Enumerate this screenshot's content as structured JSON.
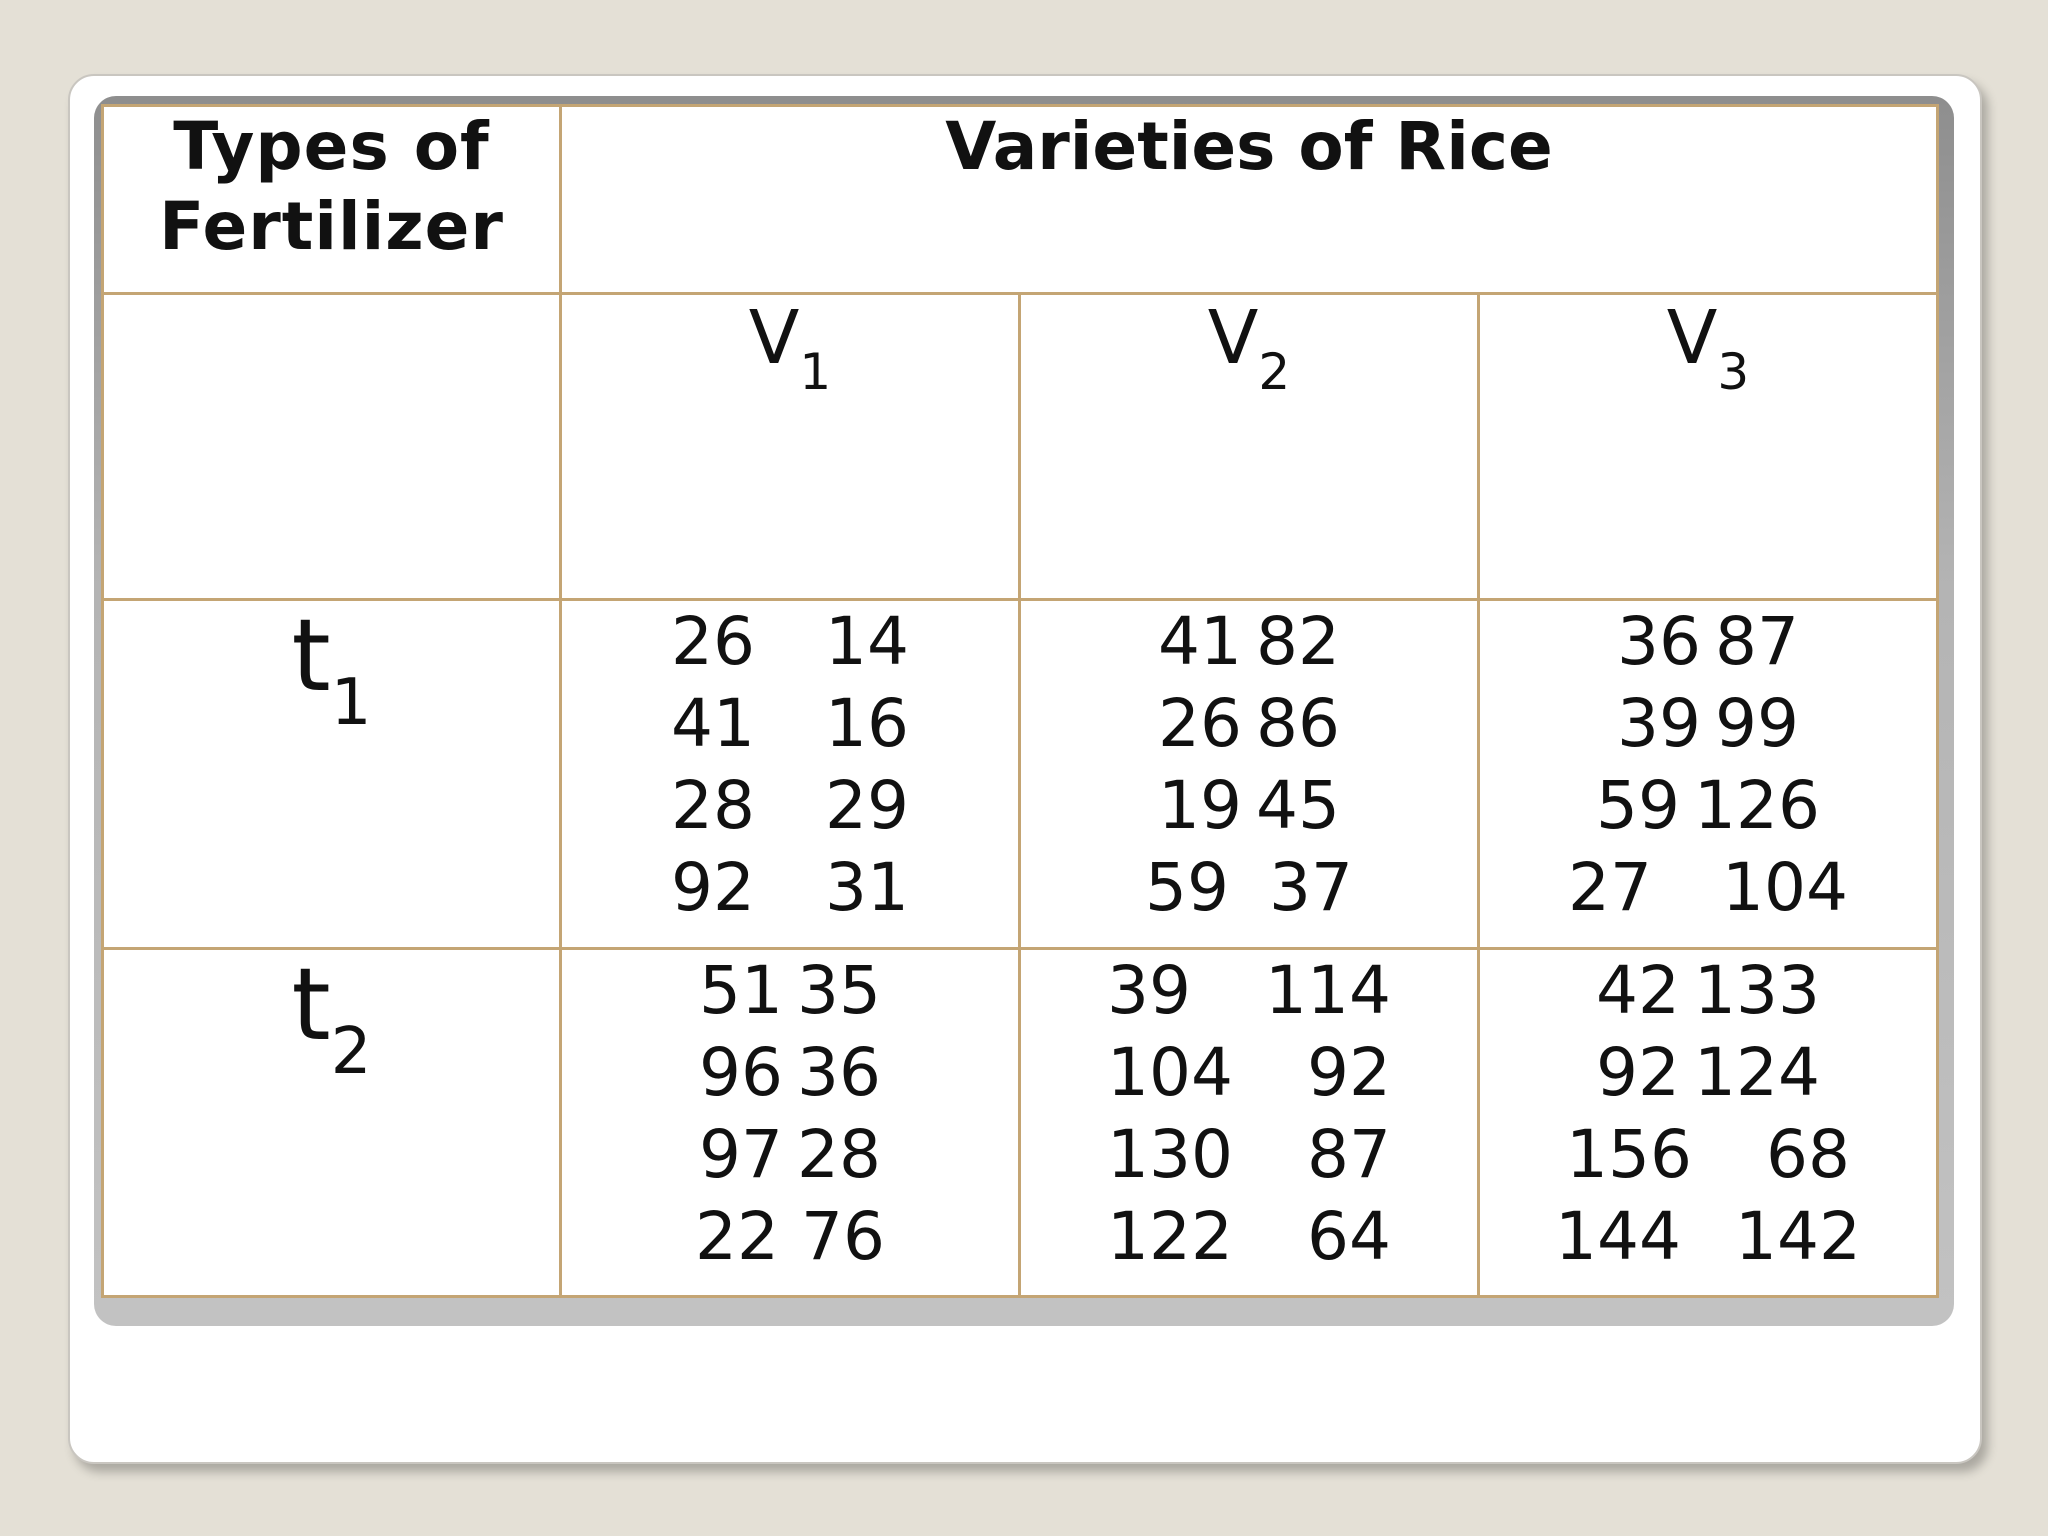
{
  "header": {
    "types_line1": "Types of",
    "types_line2": "Fertilizer",
    "varieties": "Varieties of Rice"
  },
  "varieties": [
    {
      "letter": "V",
      "sub": "1"
    },
    {
      "letter": "V",
      "sub": "2"
    },
    {
      "letter": "V",
      "sub": "3"
    }
  ],
  "rows": [
    {
      "letter": "t",
      "sub": "1",
      "cells": [
        [
          [
            "26",
            "14"
          ],
          [
            "41",
            "16"
          ],
          [
            "28",
            "29"
          ],
          [
            "92",
            "31"
          ]
        ],
        [
          [
            "41",
            "82"
          ],
          [
            "26",
            "86"
          ],
          [
            "19",
            "45"
          ],
          [
            "59",
            "37"
          ]
        ],
        [
          [
            "36",
            "87"
          ],
          [
            "39",
            "99"
          ],
          [
            "59",
            "126"
          ],
          [
            "27",
            "104"
          ]
        ]
      ]
    },
    {
      "letter": "t",
      "sub": "2",
      "cells": [
        [
          [
            "51",
            "35"
          ],
          [
            "96",
            "36"
          ],
          [
            "97",
            "28"
          ],
          [
            "22",
            "76"
          ]
        ],
        [
          [
            "39",
            "114"
          ],
          [
            "104",
            "92"
          ],
          [
            "130",
            "87"
          ],
          [
            "122",
            "64"
          ]
        ],
        [
          [
            "42",
            "133"
          ],
          [
            "92",
            "124"
          ],
          [
            "156",
            "68"
          ],
          [
            "144",
            "142"
          ]
        ]
      ]
    }
  ]
}
